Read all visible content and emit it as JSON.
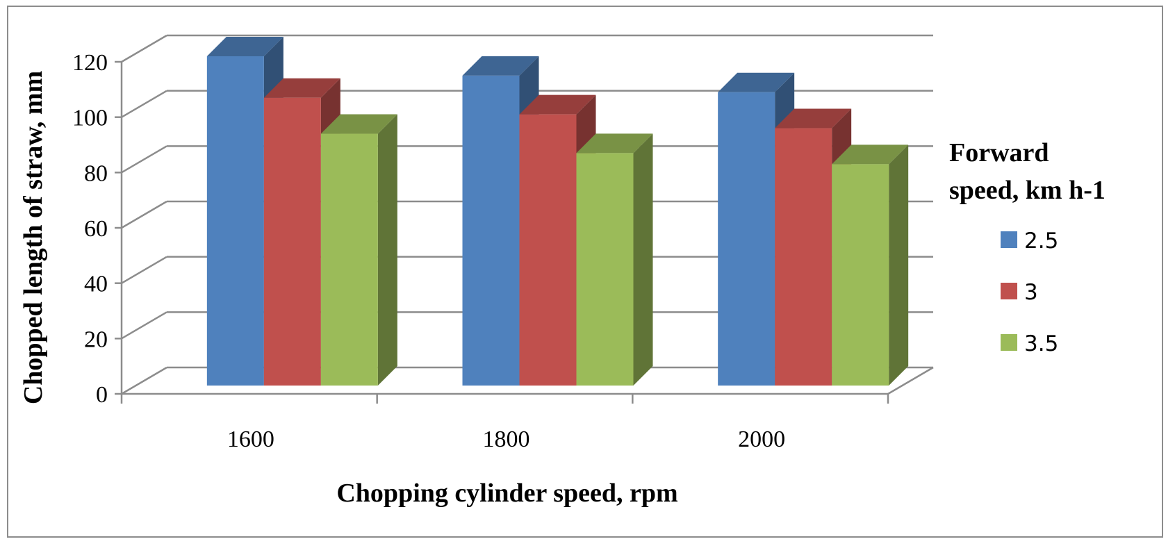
{
  "chart_data": {
    "type": "bar",
    "categories": [
      "1600",
      "1800",
      "2000"
    ],
    "series": [
      {
        "name": "2.5",
        "values": [
          119,
          112,
          106
        ],
        "color": "#4f81bd"
      },
      {
        "name": "3",
        "values": [
          104,
          98,
          93
        ],
        "color": "#c0504d"
      },
      {
        "name": "3.5",
        "values": [
          91,
          84,
          80
        ],
        "color": "#9bbb59"
      }
    ],
    "xlabel": "Chopping cylinder speed, rpm",
    "ylabel": "Chopped length of straw, mm",
    "ylim": [
      0,
      120
    ],
    "yticks": [
      "0",
      "20",
      "40",
      "60",
      "80",
      "100",
      "120"
    ],
    "legend": {
      "title_line1": "Forward",
      "title_line2": "speed, km h-1",
      "position": "right"
    },
    "grid": true,
    "style": "3d-clustered-column"
  }
}
